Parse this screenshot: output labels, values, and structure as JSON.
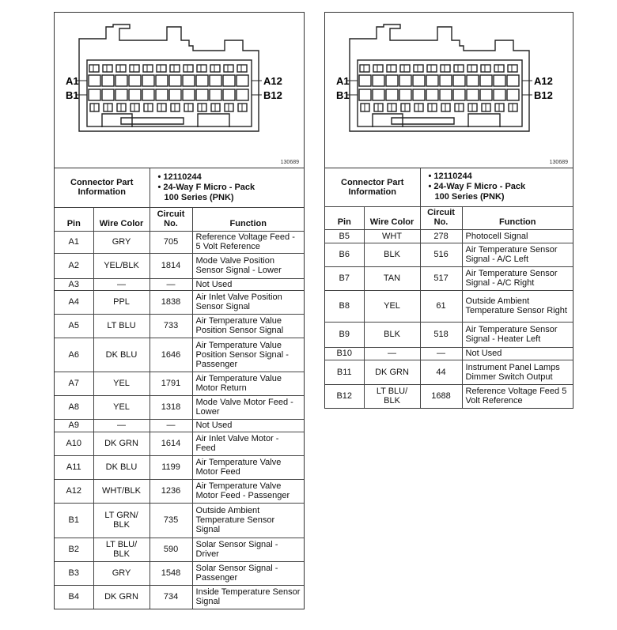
{
  "figure": {
    "number": "130689",
    "labels": {
      "a1": "A1",
      "b1": "B1",
      "a12": "A12",
      "b12": "B12"
    }
  },
  "connector_info": {
    "label": "Connector Part Information",
    "part_number": "• 12110244",
    "description_line1": "• 24-Way F Micro - Pack",
    "description_line2": "100 Series (PNK)"
  },
  "headers": {
    "pin": "Pin",
    "wire_color": "Wire Color",
    "circuit": "Circuit No.",
    "function": "Function"
  },
  "left_rows": [
    {
      "pin": "A1",
      "wire": "GRY",
      "circuit": "705",
      "function": "Reference Voltage Feed - 5 Volt Reference"
    },
    {
      "pin": "A2",
      "wire": "YEL/BLK",
      "circuit": "1814",
      "function": "Mode Valve Position Sensor Signal - Lower"
    },
    {
      "pin": "A3",
      "wire": "—",
      "circuit": "—",
      "function": "Not Used"
    },
    {
      "pin": "A4",
      "wire": "PPL",
      "circuit": "1838",
      "function": "Air Inlet Valve Position Sensor Signal"
    },
    {
      "pin": "A5",
      "wire": "LT BLU",
      "circuit": "733",
      "function": "Air Temperature Value Position Sensor Signal"
    },
    {
      "pin": "A6",
      "wire": "DK BLU",
      "circuit": "1646",
      "function": "Air Temperature Value Position Sensor Signal - Passenger"
    },
    {
      "pin": "A7",
      "wire": "YEL",
      "circuit": "1791",
      "function": "Air Temperature Value Motor Return"
    },
    {
      "pin": "A8",
      "wire": "YEL",
      "circuit": "1318",
      "function": "Mode Valve Motor Feed - Lower"
    },
    {
      "pin": "A9",
      "wire": "—",
      "circuit": "—",
      "function": "Not Used"
    },
    {
      "pin": "A10",
      "wire": "DK GRN",
      "circuit": "1614",
      "function": "Air Inlet Valve Motor - Feed"
    },
    {
      "pin": "A11",
      "wire": "DK BLU",
      "circuit": "1199",
      "function": "Air Temperature Valve Motor Feed"
    },
    {
      "pin": "A12",
      "wire": "WHT/BLK",
      "circuit": "1236",
      "function": "Air Temperature Valve Motor Feed - Passenger"
    },
    {
      "pin": "B1",
      "wire": "LT GRN/ BLK",
      "circuit": "735",
      "function": "Outside Ambient Temperature Sensor Signal"
    },
    {
      "pin": "B2",
      "wire": "LT BLU/ BLK",
      "circuit": "590",
      "function": "Solar Sensor Signal - Driver"
    },
    {
      "pin": "B3",
      "wire": "GRY",
      "circuit": "1548",
      "function": "Solar Sensor Signal - Passenger"
    },
    {
      "pin": "B4",
      "wire": "DK GRN",
      "circuit": "734",
      "function": "Inside Temperature Sensor Signal"
    }
  ],
  "right_rows": [
    {
      "pin": "B5",
      "wire": "WHT",
      "circuit": "278",
      "function": "Photocell Signal"
    },
    {
      "pin": "B6",
      "wire": "BLK",
      "circuit": "516",
      "function": "Air Temperature Sensor Signal - A/C Left"
    },
    {
      "pin": "B7",
      "wire": "TAN",
      "circuit": "517",
      "function": "Air Temperature Sensor Signal - A/C Right"
    },
    {
      "pin": "B8",
      "wire": "YEL",
      "circuit": "61",
      "function": "Outside Ambient Temperature Sensor Right"
    },
    {
      "pin": "B9",
      "wire": "BLK",
      "circuit": "518",
      "function": "Air Temperature Sensor Signal - Heater Left"
    },
    {
      "pin": "B10",
      "wire": "—",
      "circuit": "—",
      "function": "Not Used"
    },
    {
      "pin": "B11",
      "wire": "DK GRN",
      "circuit": "44",
      "function": "Instrument Panel Lamps Dimmer Switch Output"
    },
    {
      "pin": "B12",
      "wire": "LT BLU/ BLK",
      "circuit": "1688",
      "function": "Reference Voltage Feed 5 Volt Reference"
    }
  ]
}
